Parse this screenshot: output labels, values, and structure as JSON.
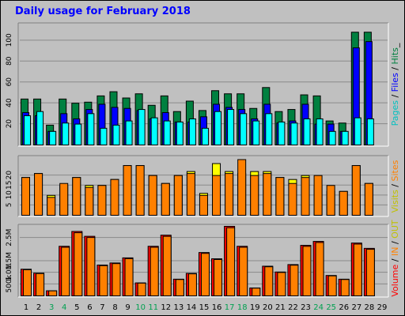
{
  "title": "Daily usage for February 2018",
  "colors": {
    "background": "#c0c0c0",
    "title": "#0000ff",
    "hits": "#008040",
    "files": "#0000ff",
    "pages": "#00ffff",
    "visits": "#ffff00",
    "sites": "#ff8000",
    "volume": "#ff0000",
    "vol_in": "#ff8000",
    "vol_out": "#ffff00",
    "weekend_day": "#00a050",
    "day": "#000000"
  },
  "chart_data": [
    {
      "type": "bar",
      "name": "pages-files-hits",
      "legend": [
        {
          "label": "Pages",
          "color": "#00c0c0"
        },
        {
          "label": " / ",
          "color": "#000000"
        },
        {
          "label": "Files",
          "color": "#0000ff"
        },
        {
          "label": " / ",
          "color": "#000000"
        },
        {
          "label": "Hits",
          "color": "#008040"
        },
        {
          "label": "_",
          "color": "#000000"
        }
      ],
      "yticks": [
        20,
        40,
        60,
        80,
        100
      ],
      "ylim": [
        0,
        115
      ],
      "series": [
        {
          "name": "Hits",
          "color": "#008040",
          "values": [
            44,
            44,
            19,
            44,
            40,
            41,
            47,
            51,
            45,
            49,
            38,
            47,
            32,
            42,
            33,
            52,
            49,
            49,
            35,
            55,
            32,
            34,
            48,
            47,
            23,
            21,
            108,
            108,
            null
          ]
        },
        {
          "name": "Files",
          "color": "#0000ff",
          "values": [
            31,
            28,
            13,
            30,
            25,
            34,
            39,
            36,
            35,
            33,
            25,
            31,
            22,
            22,
            27,
            39,
            36,
            34,
            25,
            39,
            21,
            23,
            39,
            20,
            20,
            13,
            93,
            99,
            null
          ]
        },
        {
          "name": "Pages",
          "color": "#00ffff",
          "values": [
            28,
            32,
            13,
            21,
            20,
            30,
            16,
            19,
            23,
            34,
            26,
            23,
            22,
            25,
            16,
            32,
            34,
            30,
            23,
            30,
            22,
            21,
            25,
            25,
            13,
            13,
            26,
            25,
            null
          ]
        }
      ]
    },
    {
      "type": "bar",
      "name": "visits-sites",
      "legend": [
        {
          "label": "Visits",
          "color": "#c0c000"
        },
        {
          "label": " / ",
          "color": "#000000"
        },
        {
          "label": "Sites",
          "color": "#ff8000"
        }
      ],
      "yticks": [
        5,
        10,
        15,
        20
      ],
      "ylim": [
        0,
        29
      ],
      "series": [
        {
          "name": "Visits",
          "color": "#ffff00",
          "values": [
            19,
            21,
            10,
            15,
            19,
            15,
            15,
            18,
            25,
            25,
            20,
            16,
            20,
            22,
            11,
            26,
            22,
            21,
            22,
            22,
            19,
            18,
            20,
            15,
            12,
            12,
            25,
            16,
            null
          ]
        },
        {
          "name": "Sites",
          "color": "#ff8000",
          "values": [
            19,
            21,
            9,
            16,
            19,
            14,
            15,
            18,
            25,
            25,
            20,
            16,
            20,
            21,
            10,
            20,
            21,
            28,
            20,
            21,
            19,
            16,
            19,
            20,
            15,
            12,
            25,
            16,
            null
          ]
        }
      ]
    },
    {
      "type": "bar",
      "name": "volume",
      "legend": [
        {
          "label": "Volume",
          "color": "#ff0000"
        },
        {
          "label": " / ",
          "color": "#000000"
        },
        {
          "label": "IN",
          "color": "#ff8000"
        },
        {
          "label": " / ",
          "color": "#000000"
        },
        {
          "label": "OUT",
          "color": "#c0c000"
        }
      ],
      "yticks": [
        "500k",
        "1.0M",
        "1.5M",
        "2.5M"
      ],
      "ytick_values": [
        0.5,
        1.0,
        1.5,
        2.5
      ],
      "ylim": [
        0,
        3.0
      ],
      "series": [
        {
          "name": "Volume",
          "color": "#ff0000",
          "values": [
            1.15,
            0.98,
            0.22,
            2.14,
            2.78,
            2.57,
            1.33,
            1.42,
            1.64,
            0.56,
            2.14,
            2.62,
            0.72,
            0.97,
            1.87,
            1.6,
            3.0,
            2.14,
            0.34,
            1.28,
            1.03,
            1.35,
            2.18,
            2.35,
            0.88,
            0.72,
            2.28,
            2.05,
            null
          ]
        }
      ]
    }
  ],
  "days": [
    "1",
    "2",
    "3",
    "4",
    "5",
    "6",
    "7",
    "8",
    "9",
    "10",
    "11",
    "12",
    "13",
    "14",
    "15",
    "16",
    "17",
    "18",
    "19",
    "20",
    "21",
    "22",
    "23",
    "24",
    "25",
    "26",
    "27",
    "28",
    "29"
  ],
  "weekend_days": [
    3,
    4,
    10,
    11,
    17,
    18,
    24,
    25
  ]
}
